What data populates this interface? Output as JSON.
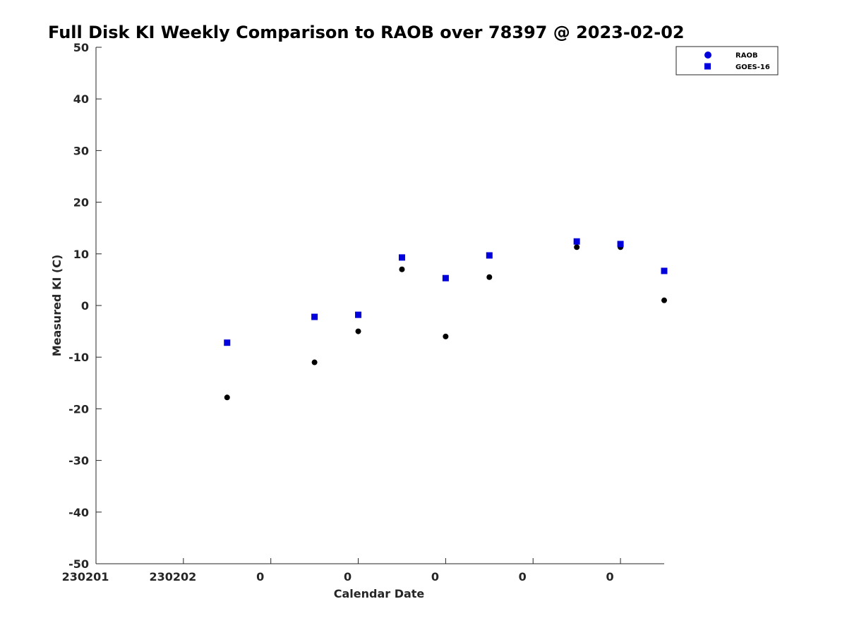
{
  "chart_data": {
    "type": "scatter",
    "title": "Full Disk KI Weekly Comparison to RAOB over 78397 @ 2023-02-02",
    "xlabel": "Calendar Date",
    "ylabel": "Measured KI (C)",
    "ylim": [
      -50,
      50
    ],
    "yticks": [
      -50,
      -40,
      -30,
      -20,
      -10,
      0,
      10,
      20,
      30,
      40,
      50
    ],
    "xlim": [
      0,
      6.5
    ],
    "xticks": [
      0,
      1,
      2,
      3,
      4,
      5,
      6
    ],
    "xtick_labels": [
      "230201",
      "230202",
      "0",
      "0",
      "0",
      "0",
      "0"
    ],
    "grid": false,
    "legend": {
      "placement": "top-right",
      "entries": [
        "RAOB",
        "GOES-16"
      ]
    },
    "series": [
      {
        "name": "RAOB",
        "marker": "circle",
        "color": "#000000",
        "x": [
          1.5,
          2.5,
          3.0,
          3.5,
          4.0,
          4.5,
          5.5,
          6.0,
          6.5
        ],
        "y": [
          -17.8,
          -11.0,
          -5.0,
          7.0,
          -6.0,
          5.5,
          11.3,
          11.3,
          1.0
        ]
      },
      {
        "name": "GOES-16",
        "marker": "square",
        "color": "#0000dd",
        "x": [
          1.5,
          2.5,
          3.0,
          3.5,
          4.0,
          4.5,
          5.5,
          6.0,
          6.5
        ],
        "y": [
          -7.2,
          -2.2,
          -1.8,
          9.3,
          5.3,
          9.7,
          12.4,
          11.9,
          6.7
        ]
      }
    ]
  }
}
